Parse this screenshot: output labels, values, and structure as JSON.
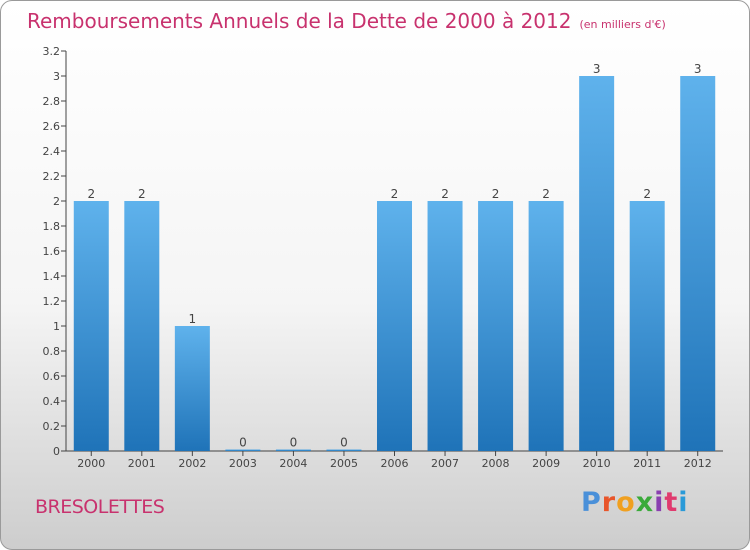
{
  "title": "Remboursements Annuels de la Dette de 2000 à 2012",
  "unit": "(en milliers d'€)",
  "town": "BRESOLETTES",
  "brand": "Proxiti",
  "brand_colors": [
    "#4a90d9",
    "#e8552a",
    "#f0a020",
    "#3aaa3a",
    "#8a3fb0",
    "#e03a6e",
    "#2a9ad8"
  ],
  "colors": {
    "title": "#c8326e",
    "bar_light": "#5fb2ec",
    "bar_dark": "#1f73b8"
  },
  "chart_data": {
    "type": "bar",
    "title": "Remboursements Annuels de la Dette de 2000 à 2012",
    "categories": [
      "2000",
      "2001",
      "2002",
      "2003",
      "2004",
      "2005",
      "2006",
      "2007",
      "2008",
      "2009",
      "2010",
      "2011",
      "2012"
    ],
    "values": [
      2,
      2,
      1,
      0,
      0,
      0,
      2,
      2,
      2,
      2,
      3,
      2,
      3
    ],
    "value_labels": [
      "2",
      "2",
      "1",
      "0",
      "0",
      "0",
      "2",
      "2",
      "2",
      "2",
      "3",
      "2",
      "3"
    ],
    "ylim": [
      0,
      3.2
    ],
    "yticks": [
      {
        "v": 0,
        "label": "0"
      },
      {
        "v": 0.2,
        "label": "0.2"
      },
      {
        "v": 0.4,
        "label": "0.4"
      },
      {
        "v": 0.6,
        "label": "0.6"
      },
      {
        "v": 0.8,
        "label": "0.8"
      },
      {
        "v": 1,
        "label": "1"
      },
      {
        "v": 1.2,
        "label": "1.2"
      },
      {
        "v": 1.4,
        "label": "1.4"
      },
      {
        "v": 1.6,
        "label": "1.6"
      },
      {
        "v": 1.8,
        "label": "1.8"
      },
      {
        "v": 2,
        "label": "2"
      },
      {
        "v": 2.2,
        "label": "2.2"
      },
      {
        "v": 2.4,
        "label": "2.4"
      },
      {
        "v": 2.6,
        "label": "2.6"
      },
      {
        "v": 2.8,
        "label": "2.8"
      },
      {
        "v": 3,
        "label": "3"
      },
      {
        "v": 3.2,
        "label": "3.2"
      }
    ],
    "grid": false,
    "legend": "none"
  }
}
